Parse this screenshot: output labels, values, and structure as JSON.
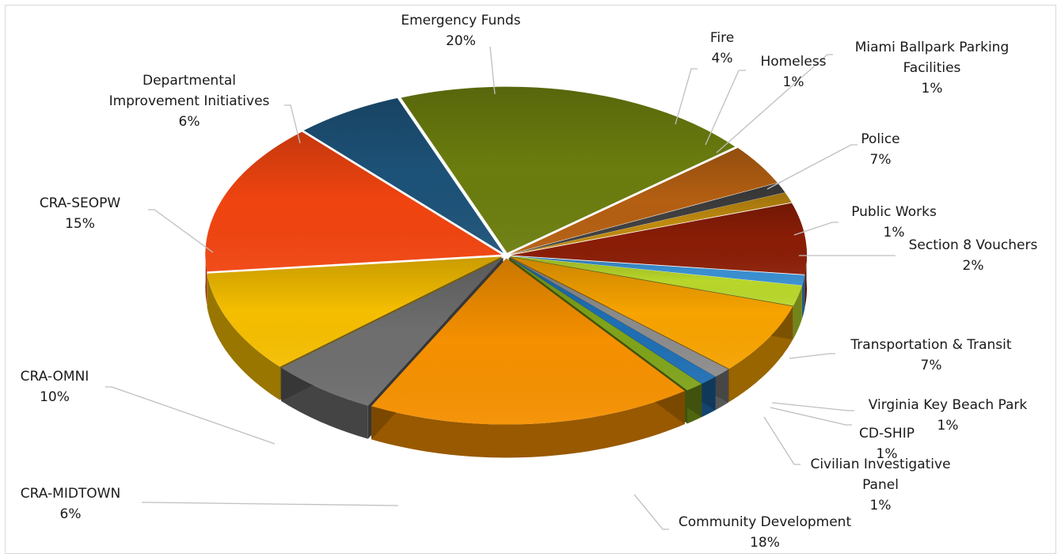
{
  "chart_data": {
    "type": "pie",
    "style": "3d-exploded-tilt",
    "legend": "none",
    "start_slice": "Emergency Funds",
    "slices": [
      {
        "name": "Emergency Funds",
        "value": 20,
        "label": "20%",
        "color": "#6b7d0e"
      },
      {
        "name": "Fire",
        "value": 4,
        "label": "4%",
        "color": "#b45f12"
      },
      {
        "name": "Homeless",
        "value": 1,
        "label": "1%",
        "color": "#404040"
      },
      {
        "name": "Miami Ballpark Parking Facilities",
        "value": 1,
        "label": "1%",
        "color": "#c08a10"
      },
      {
        "name": "Police",
        "value": 7,
        "label": "7%",
        "color": "#8a1d06"
      },
      {
        "name": "Public Works",
        "value": 1,
        "label": "1%",
        "color": "#3a8fd0"
      },
      {
        "name": "Section 8 Vouchers",
        "value": 2,
        "label": "2%",
        "color": "#b8d62a"
      },
      {
        "name": "Transportation & Transit",
        "value": 7,
        "label": "7%",
        "color": "#f7a300"
      },
      {
        "name": "Virginia Key Beach Park",
        "value": 1,
        "label": "1%",
        "color": "#8c8c8c"
      },
      {
        "name": "CD-SHIP",
        "value": 1,
        "label": "1%",
        "color": "#1f6fb4"
      },
      {
        "name": "Civilian Investigative Panel",
        "value": 1,
        "label": "1%",
        "color": "#7fa31a"
      },
      {
        "name": "Community Development",
        "value": 18,
        "label": "18%",
        "color": "#f59000"
      },
      {
        "name": "CRA-MIDTOWN",
        "value": 6,
        "label": "6%",
        "color": "#6e6e6e"
      },
      {
        "name": "CRA-OMNI",
        "value": 10,
        "label": "10%",
        "color": "#f5be00"
      },
      {
        "name": "CRA-SEOPW",
        "value": 15,
        "label": "15%",
        "color": "#f04410"
      },
      {
        "name": "Departmental Improvement Initiatives",
        "value": 6,
        "label": "6%",
        "color": "#1d5278"
      }
    ]
  }
}
